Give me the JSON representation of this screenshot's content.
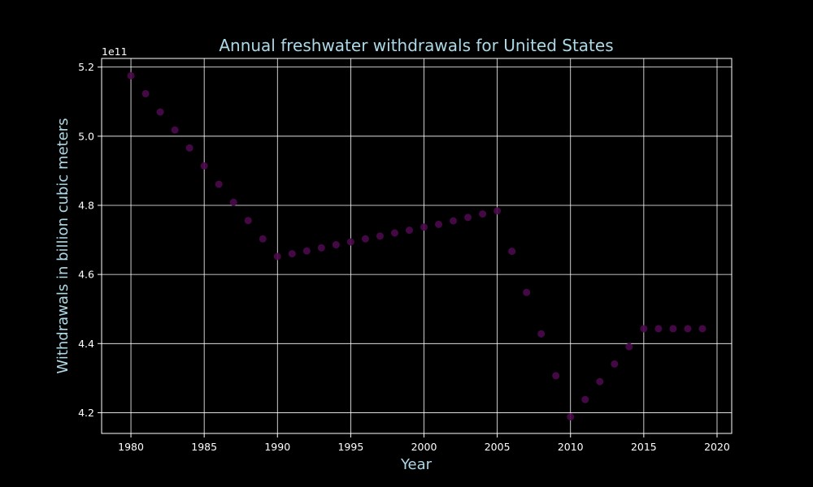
{
  "chart_data": {
    "type": "scatter",
    "title": "Annual freshwater withdrawals for United States",
    "xlabel": "Year",
    "ylabel": "Withdrawals in billion cubic meters",
    "offset_text": "1e11",
    "xlim": [
      1978,
      2021
    ],
    "ylim": [
      4.14,
      5.225
    ],
    "value_scale": 100000000000.0,
    "x_ticks": [
      1980,
      1985,
      1990,
      1995,
      2000,
      2005,
      2010,
      2015,
      2020
    ],
    "y_ticks": [
      4.2,
      4.4,
      4.6,
      4.8,
      5.0,
      5.2
    ],
    "y_tick_labels": [
      "4.2",
      "4.4",
      "4.6",
      "4.8",
      "5.0",
      "5.2"
    ],
    "grid": true,
    "background_color": "#000000",
    "text_color": "#add8e6",
    "tick_color": "#ffffff",
    "marker_color": "#4b0a4b",
    "series": [
      {
        "x": [
          1980,
          1981,
          1982,
          1983,
          1984,
          1985,
          1986,
          1987,
          1988,
          1989,
          1990,
          1991,
          1992,
          1993,
          1994,
          1995,
          1996,
          1997,
          1998,
          1999,
          2000,
          2001,
          2002,
          2003,
          2004,
          2005,
          2006,
          2007,
          2008,
          2009,
          2010,
          2011,
          2012,
          2013,
          2014,
          2015,
          2016,
          2017,
          2018,
          2019
        ],
        "y": [
          5.175,
          5.123,
          5.07,
          5.018,
          4.966,
          4.914,
          4.861,
          4.809,
          4.756,
          4.703,
          4.652,
          4.66,
          4.668,
          4.677,
          4.686,
          4.694,
          4.703,
          4.711,
          4.72,
          4.728,
          4.737,
          4.745,
          4.755,
          4.765,
          4.775,
          4.784,
          4.667,
          4.548,
          4.428,
          4.307,
          4.188,
          4.238,
          4.29,
          4.341,
          4.391,
          4.443,
          4.443,
          4.443,
          4.443,
          4.443
        ]
      }
    ]
  }
}
